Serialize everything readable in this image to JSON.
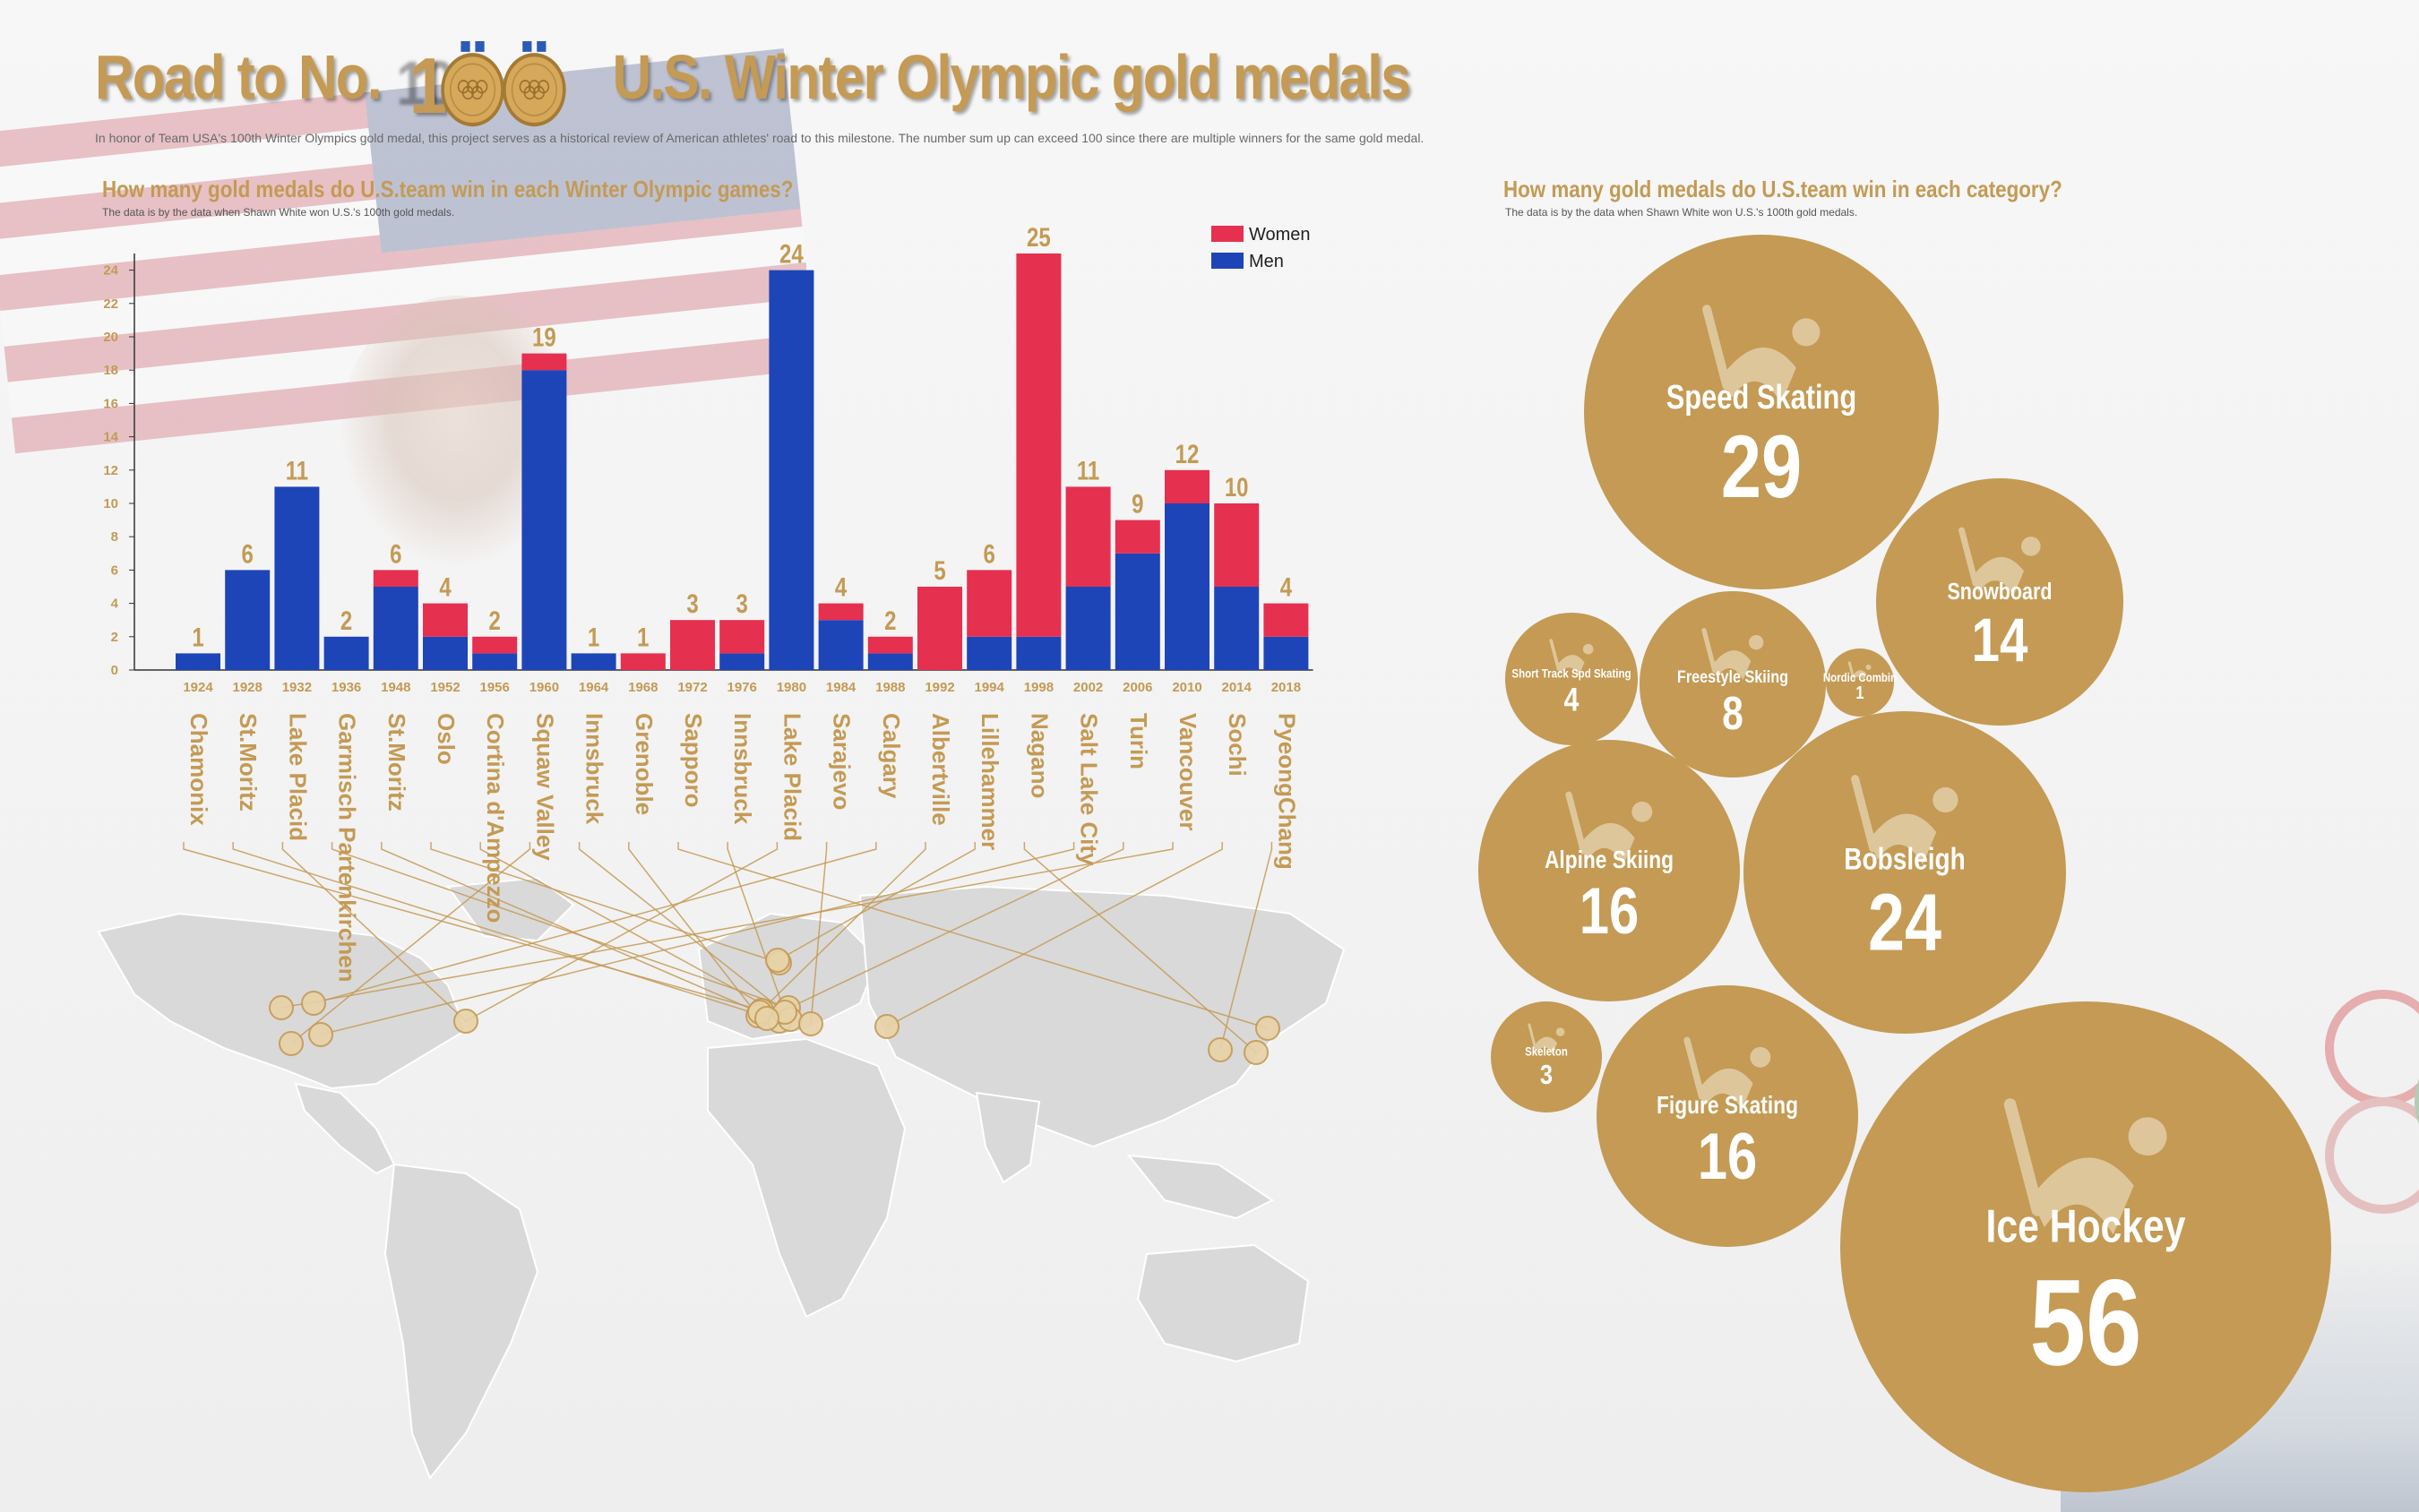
{
  "title": {
    "part1": "Road to No.",
    "number": "100",
    "part2": "U.S. Winter Olympic gold medals"
  },
  "subtitle": "In honor of Team USA's 100th Winter Olympics gold medal, this project serves as a historical review of American athletes' road to this milestone. The number sum up can exceed 100 since there are multiple winners for the same gold medal.",
  "colors": {
    "gold": "#c49a54",
    "women": "#e5304f",
    "men": "#1e45b8",
    "map": "#d8d8d8"
  },
  "left_panel": {
    "question": "How many gold medals do U.S.team win in each Winter Olympic games?",
    "note": "The data is by the data when Shawn White won U.S.'s 100th gold medals."
  },
  "right_panel": {
    "question": "How many gold medals do U.S.team win in each category?",
    "note": "The data is by the data when Shawn White won U.S.'s 100th gold medals."
  },
  "chart_data": [
    {
      "type": "bar",
      "stacked": true,
      "categories": [
        "1924",
        "1928",
        "1932",
        "1936",
        "1948",
        "1952",
        "1956",
        "1960",
        "1964",
        "1968",
        "1972",
        "1976",
        "1980",
        "1984",
        "1988",
        "1992",
        "1994",
        "1998",
        "2002",
        "2006",
        "2010",
        "2014",
        "2018"
      ],
      "cities": [
        "Chamonix",
        "St.Moritz",
        "Lake Placid",
        "Garmisch Partenkirchen",
        "St.Moritz",
        "Oslo",
        "Cortina d'Ampezzo",
        "Squaw Valley",
        "Innsbruck",
        "Grenoble",
        "Sapporo",
        "Innsbruck",
        "Lake Placid",
        "Sarajevo",
        "Calgary",
        "Albertville",
        "Lillehammer",
        "Nagano",
        "Salt Lake City",
        "Turin",
        "Vancouver",
        "Sochi",
        "PyeongChang"
      ],
      "series": [
        {
          "name": "Men",
          "values": [
            1,
            6,
            11,
            2,
            5,
            2,
            1,
            18,
            1,
            0,
            0,
            1,
            24,
            3,
            1,
            0,
            2,
            2,
            5,
            7,
            10,
            5,
            2
          ]
        },
        {
          "name": "Women",
          "values": [
            0,
            0,
            0,
            0,
            1,
            2,
            1,
            1,
            0,
            1,
            3,
            2,
            0,
            1,
            1,
            5,
            4,
            23,
            6,
            2,
            2,
            5,
            2
          ]
        }
      ],
      "totals": [
        1,
        6,
        11,
        2,
        6,
        4,
        2,
        19,
        1,
        1,
        3,
        3,
        24,
        4,
        2,
        5,
        6,
        25,
        11,
        9,
        12,
        10,
        4
      ],
      "yticks": [
        0,
        2,
        4,
        6,
        8,
        10,
        12,
        14,
        16,
        18,
        20,
        22,
        24
      ],
      "ylim": [
        0,
        25
      ],
      "legend": [
        "Women",
        "Men"
      ],
      "legend_position": "top-right",
      "grid": false
    },
    {
      "type": "bubble",
      "items": [
        {
          "name": "Speed Skating",
          "value": 29
        },
        {
          "name": "Snowboard",
          "value": 14
        },
        {
          "name": "Short Track Spd Skating",
          "value": 4
        },
        {
          "name": "Freestyle Skiing",
          "value": 8
        },
        {
          "name": "Nordic Combin",
          "value": 1
        },
        {
          "name": "Alpine Skiing",
          "value": 16
        },
        {
          "name": "Bobsleigh",
          "value": 24
        },
        {
          "name": "Skeleton",
          "value": 3
        },
        {
          "name": "Figure Skating",
          "value": 16
        },
        {
          "name": "Ice Hockey",
          "value": 56
        }
      ]
    }
  ]
}
